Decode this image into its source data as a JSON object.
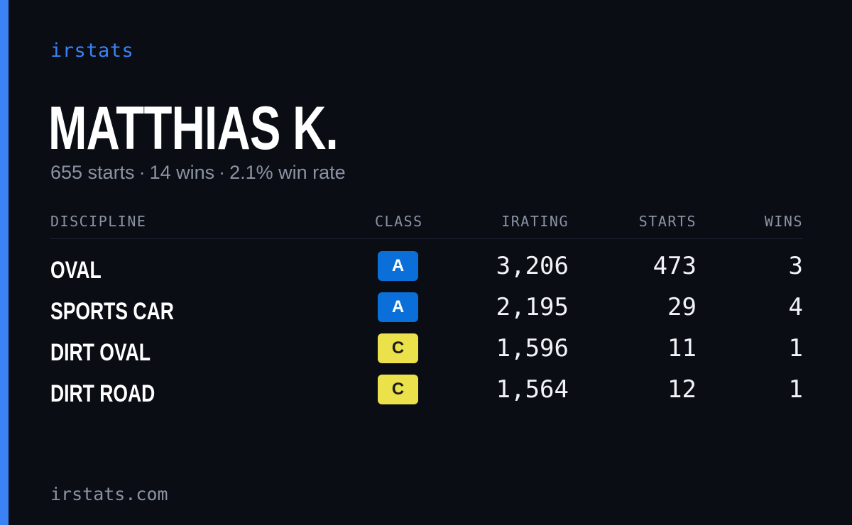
{
  "brand": "irstats",
  "colors": {
    "accent": "#3b82f6",
    "background": "#0a0d14",
    "class_a": "#0a6fd8",
    "class_c": "#ebe14a"
  },
  "driver": {
    "name": "MATTHIAS K.",
    "starts_text": "655 starts",
    "wins_text": "14 wins",
    "win_rate_text": "2.1% win rate",
    "separator": "·"
  },
  "table": {
    "headers": {
      "discipline": "DISCIPLINE",
      "class": "CLASS",
      "irating": "IRATING",
      "starts": "STARTS",
      "wins": "WINS"
    },
    "rows": [
      {
        "discipline": "OVAL",
        "class": "A",
        "irating": "3,206",
        "starts": "473",
        "wins": "3"
      },
      {
        "discipline": "SPORTS CAR",
        "class": "A",
        "irating": "2,195",
        "starts": "29",
        "wins": "4"
      },
      {
        "discipline": "DIRT OVAL",
        "class": "C",
        "irating": "1,596",
        "starts": "11",
        "wins": "1"
      },
      {
        "discipline": "DIRT ROAD",
        "class": "C",
        "irating": "1,564",
        "starts": "12",
        "wins": "1"
      }
    ]
  },
  "footer": "irstats.com"
}
